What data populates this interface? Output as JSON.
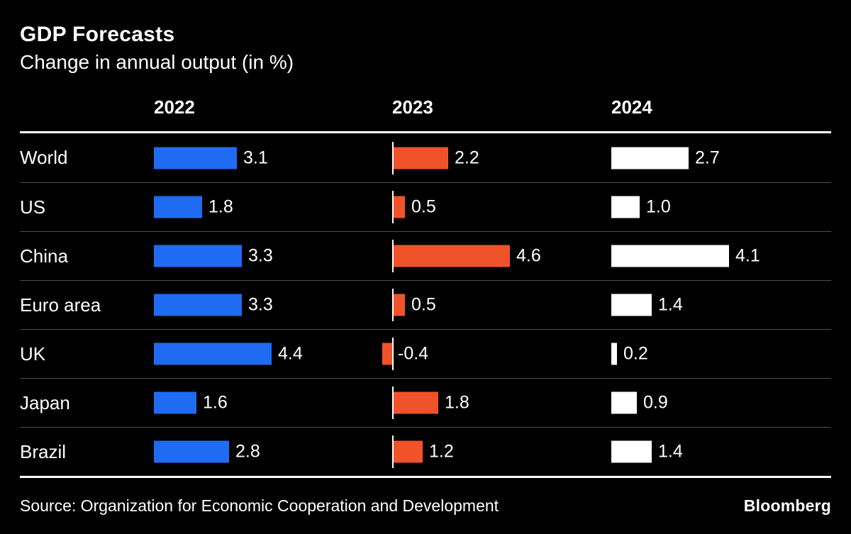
{
  "chart_data": {
    "type": "bar",
    "title": "GDP Forecasts",
    "subtitle": "Change in annual output (in %)",
    "columns": [
      "2022",
      "2023",
      "2024"
    ],
    "categories": [
      "World",
      "US",
      "China",
      "Euro area",
      "UK",
      "Japan",
      "Brazil"
    ],
    "series": [
      {
        "name": "2022",
        "color": "#1f6bf2",
        "zero_line": false,
        "values": [
          3.1,
          1.8,
          3.3,
          3.3,
          4.4,
          1.6,
          2.8
        ]
      },
      {
        "name": "2023",
        "color": "#f0532a",
        "zero_line": true,
        "values": [
          2.2,
          0.5,
          4.6,
          0.5,
          -0.4,
          1.8,
          1.2
        ]
      },
      {
        "name": "2024",
        "color": "#ffffff",
        "zero_line": false,
        "values": [
          2.7,
          1.0,
          4.1,
          1.4,
          0.2,
          0.9,
          1.4
        ]
      }
    ],
    "layout": {
      "background": "#000000",
      "divider_color": "#4f4f4f",
      "axis_line_color": "#ffffff",
      "legend": "none",
      "grid": "off"
    },
    "source": "Source: Organization for Economic Cooperation and Development",
    "brand": "Bloomberg"
  }
}
